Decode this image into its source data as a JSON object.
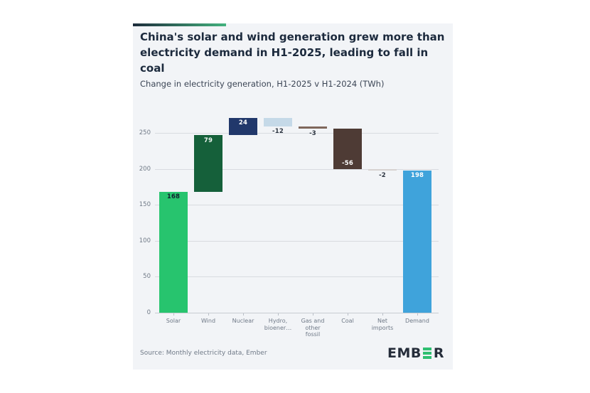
{
  "card": {
    "title": "China's solar and wind generation grew more than electricity demand in H1-2025, leading to fall in coal",
    "subtitle": "Change in electricity generation, H1-2025 v H1-2024 (TWh)",
    "source": "Source: Monthly electricity data, Ember",
    "logo": {
      "prefix": "EMB",
      "suffix": "R",
      "green": "#2fbf71",
      "dark": "#252d3a"
    },
    "accent_gradient": [
      "#1d2c3b",
      "#43b27e"
    ],
    "background": "#f2f4f7"
  },
  "chart_data": {
    "type": "bar",
    "subtype": "waterfall",
    "title": "China's solar and wind generation grew more than electricity demand in H1-2025, leading to fall in coal",
    "subtitle": "Change in electricity generation, H1-2025 v H1-2024 (TWh)",
    "unit": "TWh",
    "xlabel": "",
    "ylabel": "",
    "ylim": [
      0,
      275
    ],
    "yticks": [
      0,
      50,
      100,
      150,
      200,
      250
    ],
    "grid": true,
    "legend": false,
    "categories": [
      "Solar",
      "Wind",
      "Nuclear",
      "Hydro,\nbioener…",
      "Gas and\nother\nfossil",
      "Coal",
      "Net\nimports",
      "Demand"
    ],
    "values": [
      168,
      79,
      24,
      -12,
      -3,
      -56,
      -2,
      198
    ],
    "items": [
      {
        "id": "solar",
        "category": "Solar",
        "value": 168,
        "display": "168",
        "is_total": false,
        "color": "#27c46e",
        "value_label_color": "#10202e",
        "value_label_position": "inside-top"
      },
      {
        "id": "wind",
        "category": "Wind",
        "value": 79,
        "display": "79",
        "is_total": false,
        "color": "#15603a",
        "value_label_color": "#eef5f1",
        "value_label_position": "inside-top"
      },
      {
        "id": "nuclear",
        "category": "Nuclear",
        "value": 24,
        "display": "24",
        "is_total": false,
        "color": "#21386b",
        "value_label_color": "#ffffff",
        "value_label_position": "inside-top"
      },
      {
        "id": "hydro-bioenergy",
        "category": "Hydro,\nbioener…",
        "value": -12,
        "display": "-12",
        "is_total": false,
        "color": "#c5d9e8",
        "value_label_color": "#2e3642",
        "value_label_position": "below"
      },
      {
        "id": "gas-other-fossil",
        "category": "Gas and\nother\nfossil",
        "value": -3,
        "display": "-3",
        "is_total": false,
        "color": "#7f675b",
        "value_label_color": "#2e3642",
        "value_label_position": "below"
      },
      {
        "id": "coal",
        "category": "Coal",
        "value": -56,
        "display": "-56",
        "is_total": false,
        "color": "#4e3b35",
        "value_label_color": "#ffffff",
        "value_label_position": "inside-bottom"
      },
      {
        "id": "net-imports",
        "category": "Net\nimports",
        "value": -2,
        "display": "-2",
        "is_total": false,
        "color": "#d6d2d0",
        "value_label_color": "#2e3642",
        "value_label_position": "below"
      },
      {
        "id": "demand",
        "category": "Demand",
        "value": 198,
        "display": "198",
        "is_total": true,
        "color": "#3fa3db",
        "value_label_color": "#ffffff",
        "value_label_position": "inside-top"
      }
    ]
  }
}
